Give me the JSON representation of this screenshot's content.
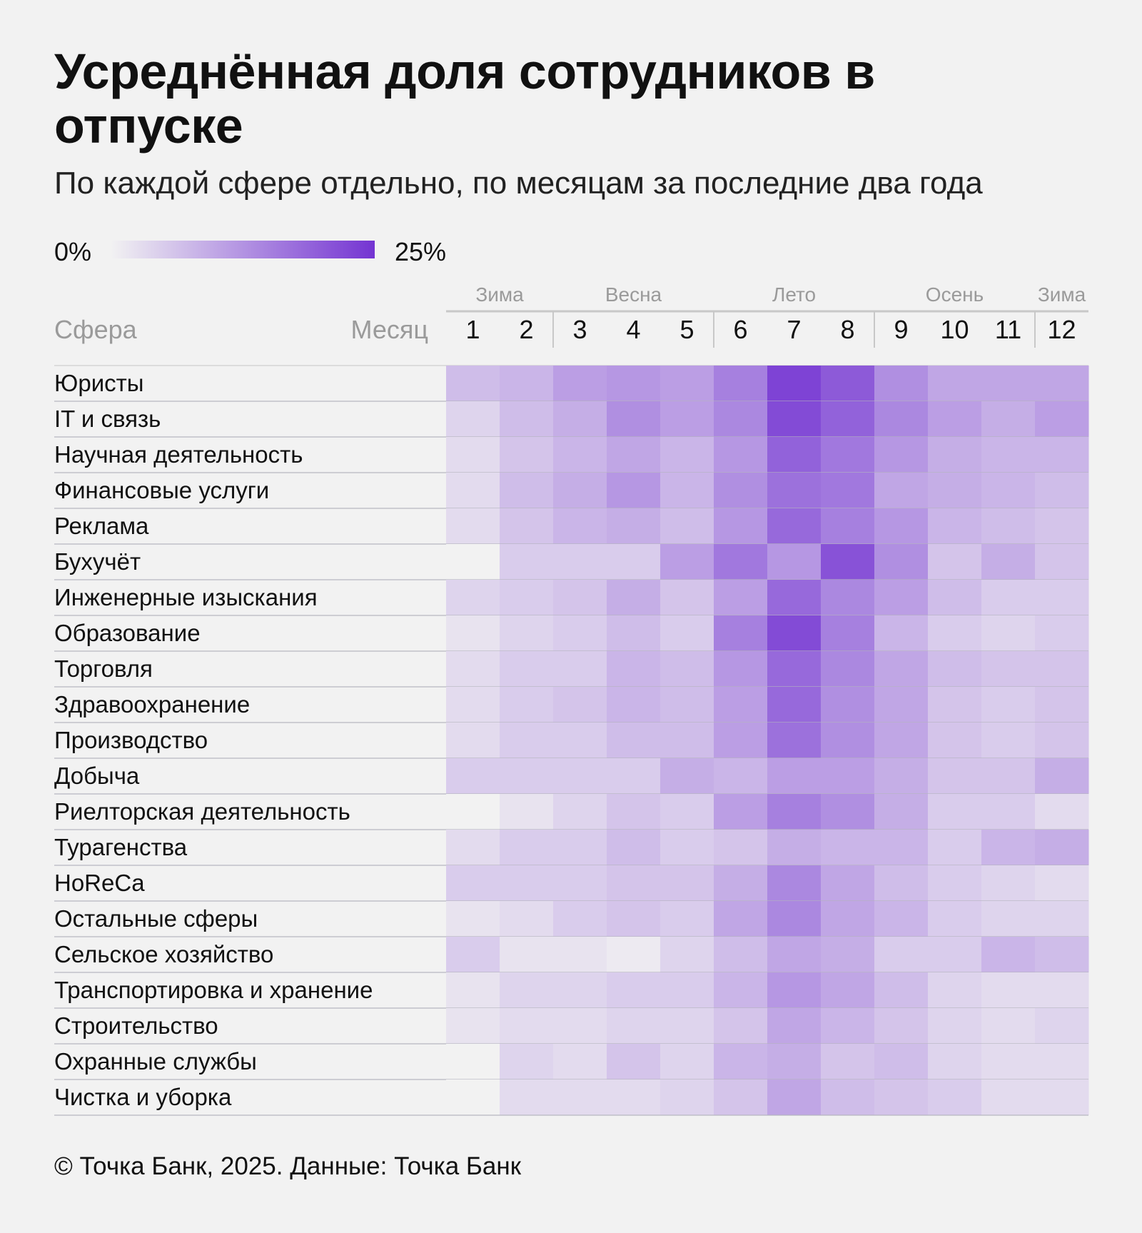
{
  "title": "Усреднённая доля сотрудников в отпуске",
  "subtitle": "По каждой сфере отдельно, по месяцам за последние два года",
  "footer": "© Точка Банк, 2025. Данные: Точка Банк",
  "chart_data": {
    "type": "heatmap",
    "title": "Усреднённая доля сотрудников в отпуске",
    "subtitle": "По каждой сфере отдельно, по месяцам за последние два года",
    "legend": {
      "min_label": "0%",
      "max_label": "25%",
      "min": 0,
      "max": 25
    },
    "colors": {
      "low": "#f2f2f2",
      "high": "#7434d2"
    },
    "row_header": "Сфера",
    "col_header": "Месяц",
    "seasons": [
      {
        "label": "Зима",
        "months": [
          1,
          2
        ]
      },
      {
        "label": "Весна",
        "months": [
          3,
          4,
          5
        ]
      },
      {
        "label": "Лето",
        "months": [
          6,
          7,
          8
        ]
      },
      {
        "label": "Осень",
        "months": [
          9,
          10,
          11
        ]
      },
      {
        "label": "Зима",
        "months": [
          12
        ]
      }
    ],
    "months": [
      "1",
      "2",
      "3",
      "4",
      "5",
      "6",
      "7",
      "8",
      "9",
      "10",
      "11",
      "12"
    ],
    "rows": [
      {
        "label": "Юристы",
        "values": [
          7,
          8,
          11,
          12,
          11,
          15,
          23,
          20,
          13,
          10,
          10,
          10
        ]
      },
      {
        "label": "IT и связь",
        "values": [
          4,
          7,
          9,
          13,
          11,
          14,
          22,
          19,
          14,
          11,
          9,
          11
        ]
      },
      {
        "label": "Научная деятельность",
        "values": [
          3,
          6,
          8,
          10,
          8,
          12,
          19,
          16,
          12,
          9,
          8,
          8
        ]
      },
      {
        "label": "Финансовые услуги",
        "values": [
          3,
          7,
          9,
          12,
          8,
          13,
          17,
          16,
          10,
          9,
          8,
          7
        ]
      },
      {
        "label": "Реклама",
        "values": [
          3,
          6,
          8,
          9,
          7,
          12,
          18,
          15,
          12,
          8,
          7,
          6
        ]
      },
      {
        "label": "Бухучёт",
        "values": [
          0,
          5,
          5,
          5,
          11,
          16,
          12,
          21,
          13,
          6,
          9,
          6
        ]
      },
      {
        "label": "Инженерные изыскания",
        "values": [
          4,
          5,
          6,
          9,
          6,
          11,
          18,
          14,
          11,
          7,
          5,
          5
        ]
      },
      {
        "label": "Образование",
        "values": [
          2,
          4,
          5,
          7,
          5,
          15,
          22,
          15,
          8,
          5,
          4,
          5
        ]
      },
      {
        "label": "Торговля",
        "values": [
          3,
          5,
          5,
          8,
          7,
          12,
          18,
          14,
          10,
          7,
          6,
          6
        ]
      },
      {
        "label": "Здравоохранение",
        "values": [
          3,
          5,
          6,
          8,
          7,
          11,
          18,
          13,
          10,
          6,
          5,
          6
        ]
      },
      {
        "label": "Производство",
        "values": [
          3,
          5,
          5,
          7,
          7,
          11,
          17,
          13,
          10,
          6,
          5,
          6
        ]
      },
      {
        "label": "Добыча",
        "values": [
          5,
          5,
          5,
          5,
          9,
          8,
          11,
          11,
          9,
          6,
          6,
          9
        ]
      },
      {
        "label": "Риелторская деятельность",
        "values": [
          0,
          2,
          4,
          6,
          5,
          11,
          15,
          13,
          9,
          5,
          5,
          3
        ]
      },
      {
        "label": "Турагенства",
        "values": [
          3,
          5,
          5,
          7,
          5,
          6,
          9,
          8,
          8,
          5,
          8,
          9
        ]
      },
      {
        "label": "HoReCa",
        "values": [
          5,
          5,
          5,
          6,
          6,
          9,
          14,
          10,
          7,
          5,
          4,
          3
        ]
      },
      {
        "label": "Остальные сферы",
        "values": [
          2,
          3,
          5,
          6,
          5,
          10,
          14,
          10,
          8,
          5,
          4,
          4
        ]
      },
      {
        "label": "Сельское хозяйство",
        "values": [
          5,
          2,
          2,
          1,
          4,
          7,
          10,
          9,
          5,
          5,
          8,
          7
        ]
      },
      {
        "label": "Транспортировка и хранение",
        "values": [
          2,
          4,
          4,
          5,
          5,
          8,
          12,
          10,
          7,
          4,
          3,
          3
        ]
      },
      {
        "label": "Строительство",
        "values": [
          2,
          3,
          3,
          4,
          4,
          6,
          10,
          8,
          6,
          4,
          3,
          4
        ]
      },
      {
        "label": "Охранные службы",
        "values": [
          0,
          4,
          3,
          6,
          4,
          8,
          9,
          6,
          7,
          4,
          3,
          3
        ]
      },
      {
        "label": "Чистка и уборка",
        "values": [
          0,
          3,
          3,
          3,
          4,
          6,
          10,
          7,
          6,
          5,
          3,
          3
        ]
      }
    ]
  }
}
